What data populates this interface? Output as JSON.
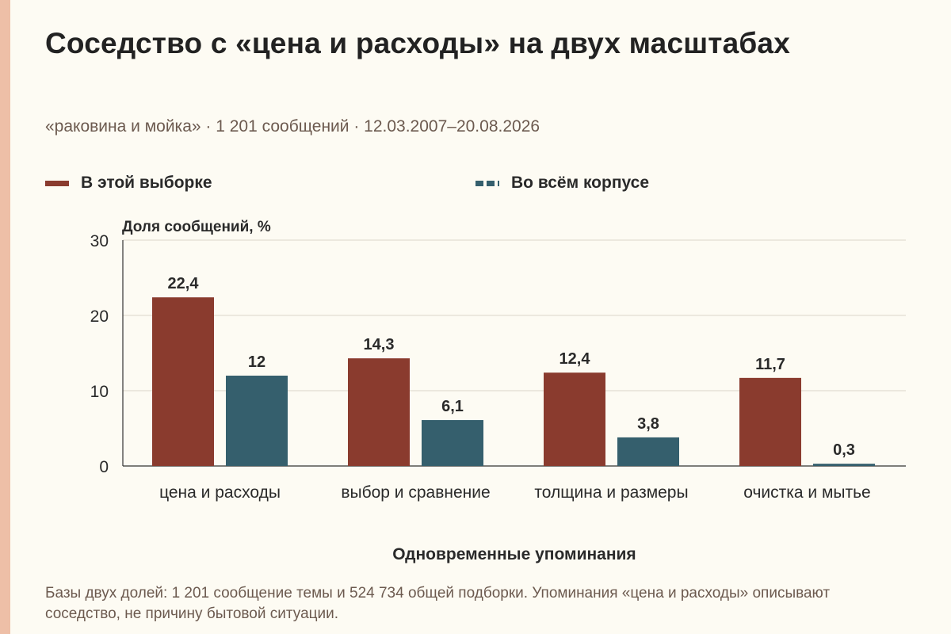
{
  "title": "Соседство с «цена и расходы» на двух масштабах",
  "subtitle": "«раковина и мойка» · 1 201 сообщений · 12.03.2007–20.08.2026",
  "footnote": "Базы двух долей: 1 201 сообщение темы и 524 734 общей подборки. Упоминания «цена и расходы» описывают соседство, не причину бытовой ситуации.",
  "colors": {
    "sample": "#8a3b2e",
    "corpus": "#355f6d",
    "accent_strip": "#eebfa7"
  },
  "chart_data": {
    "type": "bar",
    "title": "Соседство с «цена и расходы» на двух масштабах",
    "xlabel": "Одновременные упоминания",
    "ylabel": "Доля сообщений, %",
    "ylim": [
      0,
      30
    ],
    "yticks": [
      0,
      10,
      20,
      30
    ],
    "grid": true,
    "legend_position": "top",
    "categories": [
      "цена и расходы",
      "выбор и сравнение",
      "толщина и размеры",
      "очистка и мытье"
    ],
    "series": [
      {
        "name": "В этой выборке",
        "values": [
          22.4,
          14.3,
          12.4,
          11.7
        ],
        "labels": [
          "22,4",
          "14,3",
          "12,4",
          "11,7"
        ],
        "color": "#8a3b2e"
      },
      {
        "name": "Во всём корпусе",
        "values": [
          12,
          6.1,
          3.8,
          0.3
        ],
        "labels": [
          "12",
          "6,1",
          "3,8",
          "0,3"
        ],
        "color": "#355f6d"
      }
    ]
  }
}
